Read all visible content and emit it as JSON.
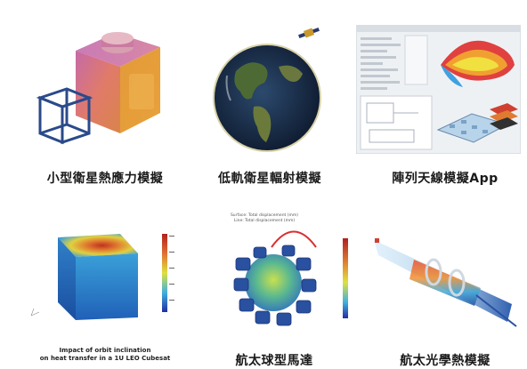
{
  "cards": [
    {
      "title": "小型衛星熱應力模擬"
    },
    {
      "title": "低軌衛星輻射模擬"
    },
    {
      "title": "陣列天線模擬App"
    },
    {
      "title_line1": "Impact of orbit inclination",
      "title_line2": "on heat transfer in a 1U LEO Cubesat"
    },
    {
      "title": "航太球型馬達"
    },
    {
      "title": "航太光學熱模擬"
    }
  ],
  "plot_text": {
    "motor_title_line1": "Surface: Total displacement (mm)",
    "motor_title_line2": "Line: Total displacement (mm)"
  },
  "colors": {
    "accent_orange": "#e07a3a",
    "accent_blue": "#2a4a8a"
  }
}
